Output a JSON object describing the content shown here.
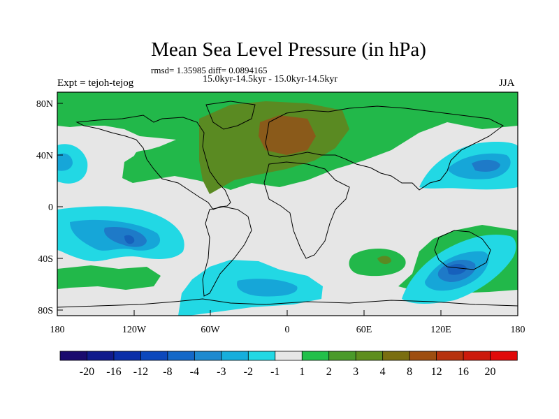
{
  "title": "Mean Sea Level Pressure (in hPa)",
  "stats_line": "rmsd= 1.35985 diff= 0.0894165",
  "period_line": "15.0kyr-14.5kyr - 15.0kyr-14.5kyr",
  "experiment_label": "Expt = tejoh-tejog",
  "season_label": "JJA",
  "latitude_ticks": [
    "80N",
    "40N",
    "0",
    "40S",
    "80S"
  ],
  "longitude_ticks": [
    "180",
    "120W",
    "60W",
    "0",
    "60E",
    "120E",
    "180"
  ],
  "colorbar": {
    "labels": [
      "-20",
      "-16",
      "-12",
      "-8",
      "-4",
      "-3",
      "-2",
      "-1",
      "1",
      "2",
      "3",
      "4",
      "8",
      "12",
      "16",
      "20"
    ],
    "colors": [
      "#1a0a6e",
      "#101a8c",
      "#0a2ea8",
      "#0c48bc",
      "#1468c8",
      "#1e8ad0",
      "#16aedc",
      "#22d8e4",
      "#e6e6e6",
      "#22c04a",
      "#4a9a2a",
      "#5e8e1e",
      "#7a6e10",
      "#9e4e10",
      "#b6320e",
      "#cc1a0c",
      "#e00a0a"
    ]
  },
  "colors": {
    "background": "#e6e6e6",
    "positive_1": "#22b84a",
    "positive_2": "#5a8a22",
    "positive_3": "#8a5a1a",
    "negative_1": "#22d8e4",
    "negative_2": "#16a6d8",
    "negative_3": "#1e7ac8",
    "negative_4": "#1660bc"
  }
}
